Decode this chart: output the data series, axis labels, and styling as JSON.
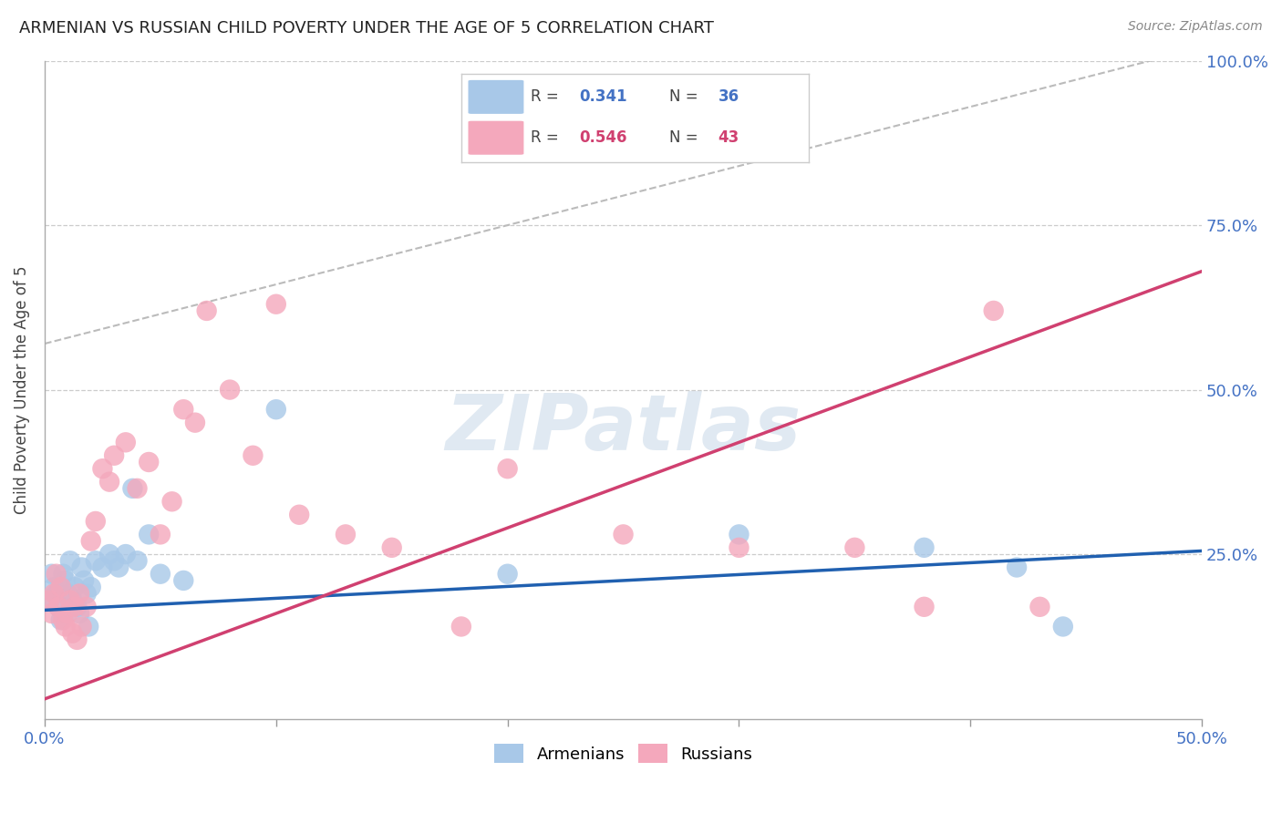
{
  "title": "ARMENIAN VS RUSSIAN CHILD POVERTY UNDER THE AGE OF 5 CORRELATION CHART",
  "source": "Source: ZipAtlas.com",
  "ylabel": "Child Poverty Under the Age of 5",
  "xlim": [
    0.0,
    0.5
  ],
  "ylim": [
    0.0,
    1.0
  ],
  "armenian_color": "#a8c8e8",
  "russian_color": "#f4a8bc",
  "armenian_line_color": "#2060b0",
  "russian_line_color": "#d04070",
  "diagonal_color": "#bbbbbb",
  "watermark": "ZIPatlas",
  "R_armenian": 0.341,
  "N_armenian": 36,
  "R_russian": 0.546,
  "N_russian": 43,
  "armenians_x": [
    0.002,
    0.003,
    0.004,
    0.005,
    0.006,
    0.007,
    0.008,
    0.009,
    0.01,
    0.011,
    0.012,
    0.013,
    0.014,
    0.015,
    0.016,
    0.017,
    0.018,
    0.019,
    0.02,
    0.022,
    0.025,
    0.028,
    0.03,
    0.032,
    0.035,
    0.038,
    0.04,
    0.045,
    0.05,
    0.06,
    0.1,
    0.2,
    0.3,
    0.38,
    0.42,
    0.44
  ],
  "armenians_y": [
    0.18,
    0.22,
    0.2,
    0.19,
    0.17,
    0.15,
    0.22,
    0.21,
    0.19,
    0.24,
    0.18,
    0.2,
    0.17,
    0.16,
    0.23,
    0.21,
    0.19,
    0.14,
    0.2,
    0.24,
    0.23,
    0.25,
    0.24,
    0.23,
    0.25,
    0.35,
    0.24,
    0.28,
    0.22,
    0.21,
    0.47,
    0.22,
    0.28,
    0.26,
    0.23,
    0.14
  ],
  "russians_x": [
    0.002,
    0.003,
    0.004,
    0.005,
    0.006,
    0.007,
    0.008,
    0.009,
    0.01,
    0.011,
    0.012,
    0.013,
    0.014,
    0.015,
    0.016,
    0.018,
    0.02,
    0.022,
    0.025,
    0.028,
    0.03,
    0.035,
    0.04,
    0.045,
    0.05,
    0.055,
    0.06,
    0.065,
    0.07,
    0.08,
    0.09,
    0.1,
    0.11,
    0.13,
    0.15,
    0.18,
    0.2,
    0.25,
    0.3,
    0.35,
    0.38,
    0.41,
    0.43
  ],
  "russians_y": [
    0.18,
    0.16,
    0.19,
    0.22,
    0.17,
    0.2,
    0.15,
    0.14,
    0.16,
    0.18,
    0.13,
    0.17,
    0.12,
    0.19,
    0.14,
    0.17,
    0.27,
    0.3,
    0.38,
    0.36,
    0.4,
    0.42,
    0.35,
    0.39,
    0.28,
    0.33,
    0.47,
    0.45,
    0.62,
    0.5,
    0.4,
    0.63,
    0.31,
    0.28,
    0.26,
    0.14,
    0.38,
    0.28,
    0.26,
    0.26,
    0.17,
    0.62,
    0.17
  ]
}
